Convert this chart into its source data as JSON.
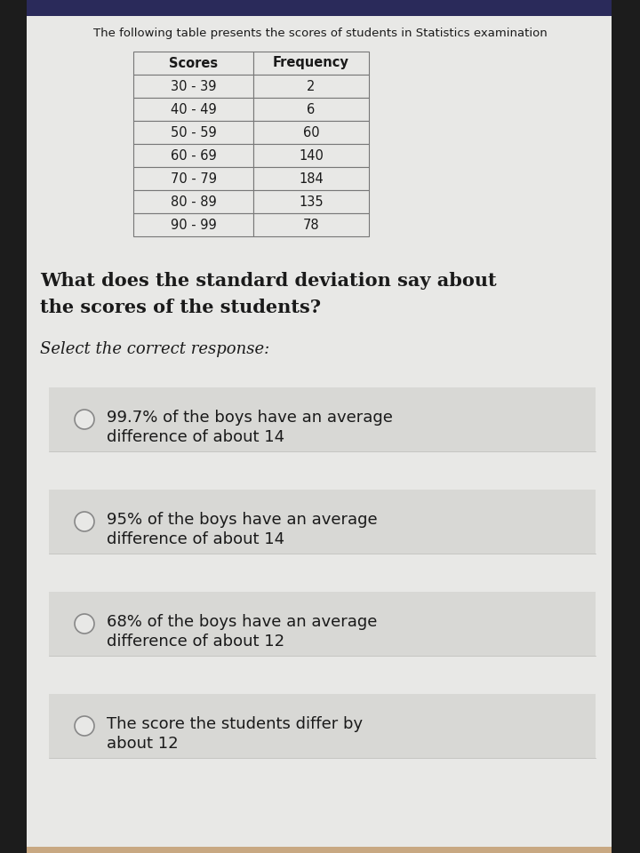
{
  "title": "The following table presents the scores of students in Statistics examination",
  "table_headers": [
    "Scores",
    "Frequency"
  ],
  "table_rows": [
    [
      "30 - 39",
      "2"
    ],
    [
      "40 - 49",
      "6"
    ],
    [
      "50 - 59",
      "60"
    ],
    [
      "60 - 69",
      "140"
    ],
    [
      "70 - 79",
      "184"
    ],
    [
      "80 - 89",
      "135"
    ],
    [
      "90 - 99",
      "78"
    ]
  ],
  "question_line1": "What does the standard deviation say about",
  "question_line2": "the scores of the students?",
  "select_text": "Select the correct response:",
  "options": [
    [
      "99.7% of the boys have an average",
      "difference of about 14"
    ],
    [
      "95% of the boys have an average",
      "difference of about 14"
    ],
    [
      "68% of the boys have an average",
      "difference of about 12"
    ],
    [
      "The score the students differ by",
      "about 12"
    ]
  ],
  "outer_bg": "#c8a882",
  "phone_left_bg": "#1a1a1a",
  "screen_bg": "#e8e8e6",
  "table_cell_bg": "#e8e8e6",
  "option_bg": "#d8d8d5",
  "border_color": "#777777",
  "text_color": "#1a1a1a",
  "title_fontsize": 9.5,
  "question_fontsize": 15,
  "select_fontsize": 13,
  "option_fontsize": 13,
  "table_fontsize": 10.5
}
